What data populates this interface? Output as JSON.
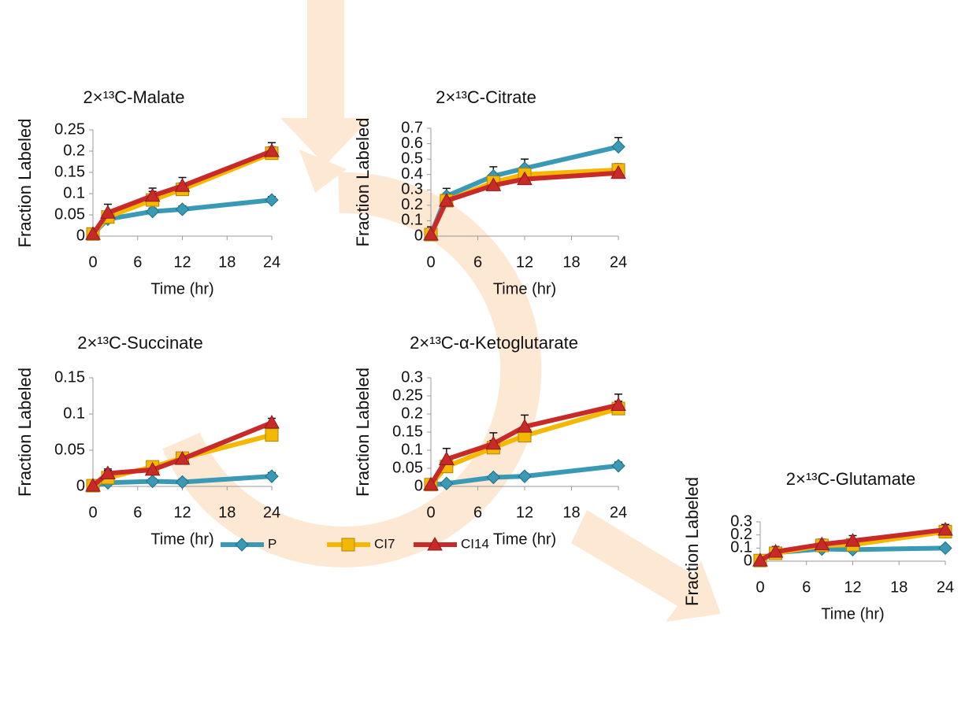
{
  "chart_data": [
    {
      "type": "line",
      "title": "2×¹³C-Malate",
      "xlabel": "Time (hr)",
      "ylabel": "Fraction Labeled",
      "x": [
        0,
        2,
        8,
        12,
        24
      ],
      "xlim": [
        0,
        24
      ],
      "xticks": [
        0,
        6,
        12,
        18,
        24
      ],
      "ylim": [
        0,
        0.25
      ],
      "yticks": [
        0,
        0.05,
        0.1,
        0.15,
        0.2,
        0.25
      ],
      "series": [
        {
          "name": "P",
          "color": "#3a9ab5",
          "marker": "diamond",
          "values": [
            0.005,
            0.04,
            0.058,
            0.063,
            0.085
          ],
          "errors": [
            0.005,
            0.005,
            0.008,
            0.008,
            0.008
          ]
        },
        {
          "name": "CI7",
          "color": "#f5b800",
          "marker": "square",
          "values": [
            0.005,
            0.045,
            0.085,
            0.11,
            0.195
          ],
          "errors": [
            0.005,
            0.01,
            0.02,
            0.015,
            0.015
          ]
        },
        {
          "name": "CI14",
          "color": "#c82a2a",
          "marker": "triangle",
          "values": [
            0.005,
            0.055,
            0.095,
            0.118,
            0.2
          ],
          "errors": [
            0.008,
            0.02,
            0.018,
            0.02,
            0.02
          ]
        }
      ]
    },
    {
      "type": "line",
      "title": "2×¹³C-Citrate",
      "xlabel": "Time (hr)",
      "ylabel": "Fraction Labeled",
      "x": [
        0,
        2,
        8,
        12,
        24
      ],
      "xlim": [
        0,
        24
      ],
      "xticks": [
        0,
        6,
        12,
        18,
        24
      ],
      "ylim": [
        0,
        0.7
      ],
      "yticks": [
        0,
        0.1,
        0.2,
        0.3,
        0.4,
        0.5,
        0.6,
        0.7
      ],
      "series": [
        {
          "color": "#3a9ab5",
          "marker": "diamond",
          "values": [
            0.01,
            0.26,
            0.39,
            0.44,
            0.58
          ],
          "errors": [
            0.05,
            0.05,
            0.06,
            0.06,
            0.06
          ]
        },
        {
          "color": "#f5b800",
          "marker": "square",
          "values": [
            0.01,
            0.23,
            0.35,
            0.4,
            0.43
          ],
          "errors": [
            0.03,
            0.03,
            0.05,
            0.05,
            0.04
          ]
        },
        {
          "color": "#c82a2a",
          "marker": "triangle",
          "values": [
            0.01,
            0.23,
            0.33,
            0.37,
            0.41
          ],
          "errors": [
            0.03,
            0.03,
            0.04,
            0.04,
            0.04
          ]
        }
      ]
    },
    {
      "type": "line",
      "title": "2×¹³C-Succinate",
      "xlabel": "Time (hr)",
      "ylabel": "Fraction Labeled",
      "x": [
        0,
        2,
        8,
        12,
        24
      ],
      "xlim": [
        0,
        24
      ],
      "xticks": [
        0,
        6,
        12,
        18,
        24
      ],
      "ylim": [
        0,
        0.15
      ],
      "yticks": [
        0,
        0.05,
        0.1,
        0.15
      ],
      "series": [
        {
          "color": "#3a9ab5",
          "marker": "diamond",
          "values": [
            0.001,
            0.005,
            0.007,
            0.006,
            0.014
          ],
          "errors": [
            0.002,
            0.003,
            0.004,
            0.004,
            0.005
          ]
        },
        {
          "color": "#f5b800",
          "marker": "square",
          "values": [
            0.001,
            0.012,
            0.027,
            0.039,
            0.071
          ],
          "errors": [
            0.003,
            0.01,
            0.005,
            0.005,
            0.006
          ]
        },
        {
          "color": "#c82a2a",
          "marker": "triangle",
          "values": [
            0.001,
            0.018,
            0.023,
            0.038,
            0.088
          ],
          "errors": [
            0.003,
            0.006,
            0.005,
            0.005,
            0.006
          ]
        }
      ]
    },
    {
      "type": "line",
      "title": "2×¹³C-α-Ketoglutarate",
      "xlabel": "Time (hr)",
      "ylabel": "Fraction Labeled",
      "x": [
        0,
        2,
        8,
        12,
        24
      ],
      "xlim": [
        0,
        24
      ],
      "xticks": [
        0,
        6,
        12,
        18,
        24
      ],
      "ylim": [
        0,
        0.3
      ],
      "yticks": [
        0,
        0.05,
        0.1,
        0.15,
        0.2,
        0.25,
        0.3
      ],
      "series": [
        {
          "color": "#3a9ab5",
          "marker": "diamond",
          "values": [
            0.005,
            0.008,
            0.025,
            0.028,
            0.057
          ],
          "errors": [
            0.005,
            0.005,
            0.008,
            0.008,
            0.01
          ]
        },
        {
          "color": "#f5b800",
          "marker": "square",
          "values": [
            0.005,
            0.055,
            0.107,
            0.14,
            0.215
          ],
          "errors": [
            0.01,
            0.02,
            0.02,
            0.02,
            0.02
          ]
        },
        {
          "color": "#c82a2a",
          "marker": "triangle",
          "values": [
            0.005,
            0.075,
            0.118,
            0.165,
            0.225
          ],
          "errors": [
            0.01,
            0.03,
            0.03,
            0.032,
            0.03
          ]
        }
      ]
    },
    {
      "type": "line",
      "title": "2×¹³C-Glutamate",
      "xlabel": "Time (hr)",
      "ylabel": "Fraction Labeled",
      "x": [
        0,
        2,
        8,
        12,
        24
      ],
      "xlim": [
        0,
        24
      ],
      "xticks": [
        0,
        6,
        12,
        18,
        24
      ],
      "ylim": [
        0,
        0.3
      ],
      "yticks": [
        0,
        0.1,
        0.2,
        0.3
      ],
      "series": [
        {
          "color": "#3a9ab5",
          "marker": "diamond",
          "values": [
            0.005,
            0.065,
            0.093,
            0.088,
            0.1
          ],
          "errors": [
            0.03,
            0.02,
            0.02,
            0.02,
            0.02
          ]
        },
        {
          "color": "#f5b800",
          "marker": "square",
          "values": [
            0.005,
            0.06,
            0.12,
            0.125,
            0.225
          ],
          "errors": [
            0.03,
            0.03,
            0.03,
            0.03,
            0.03
          ]
        },
        {
          "color": "#c82a2a",
          "marker": "triangle",
          "values": [
            0.005,
            0.072,
            0.128,
            0.155,
            0.24
          ],
          "errors": [
            0.03,
            0.04,
            0.04,
            0.04,
            0.04
          ]
        }
      ]
    }
  ]
}
